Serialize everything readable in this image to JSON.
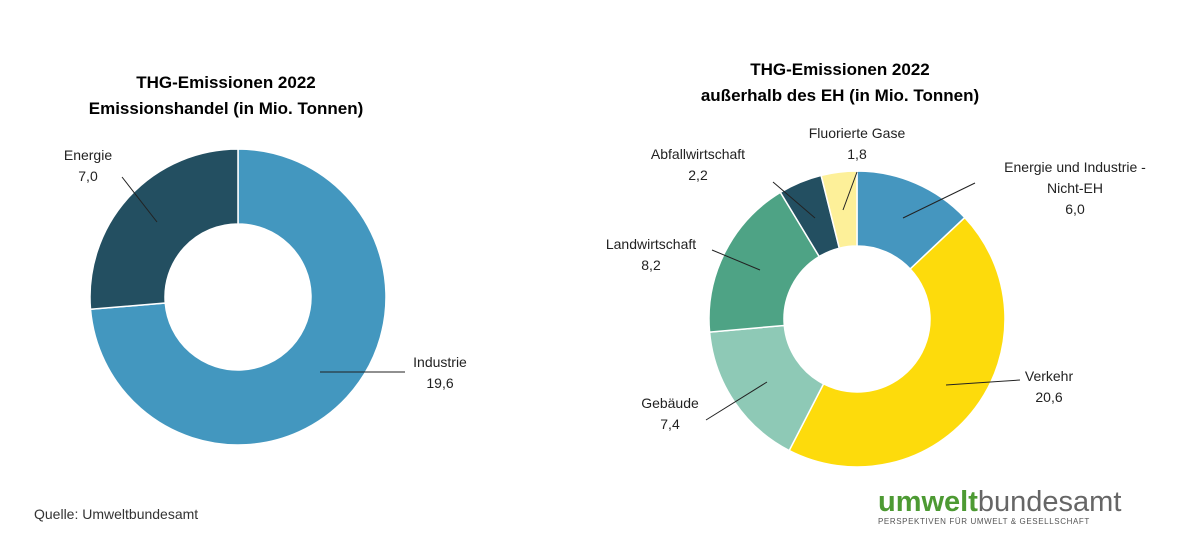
{
  "chart_data": [
    {
      "type": "donut",
      "title": "THG-Emissionen 2022",
      "subtitle": "Emissionshandel (in Mio. Tonnen)",
      "categories": [
        "Industrie",
        "Energie"
      ],
      "values": [
        19.6,
        7.0
      ],
      "value_labels": [
        "19,6",
        "7,0"
      ],
      "colors": [
        "#4397bf",
        "#234f61"
      ]
    },
    {
      "type": "donut",
      "title": "THG-Emissionen 2022",
      "subtitle": "außerhalb des EH (in Mio. Tonnen)",
      "categories": [
        "Energie und Industrie - Nicht-EH",
        "Verkehr",
        "Gebäude",
        "Landwirtschaft",
        "Abfallwirtschaft",
        "Fluorierte Gase"
      ],
      "values": [
        6.0,
        20.6,
        7.4,
        8.2,
        2.2,
        1.8
      ],
      "value_labels": [
        "6,0",
        "20,6",
        "7,4",
        "8,2",
        "2,2",
        "1,8"
      ],
      "colors": [
        "#4596bf",
        "#fddb0c",
        "#8ec9b6",
        "#4ea385",
        "#234f61",
        "#fdf099"
      ]
    }
  ],
  "source": "Quelle: Umweltbundesamt",
  "logo": {
    "part1": "umwelt",
    "part2": "bundesamt",
    "tagline": "PERSPEKTIVEN FÜR UMWELT & GESELLSCHAFT"
  }
}
